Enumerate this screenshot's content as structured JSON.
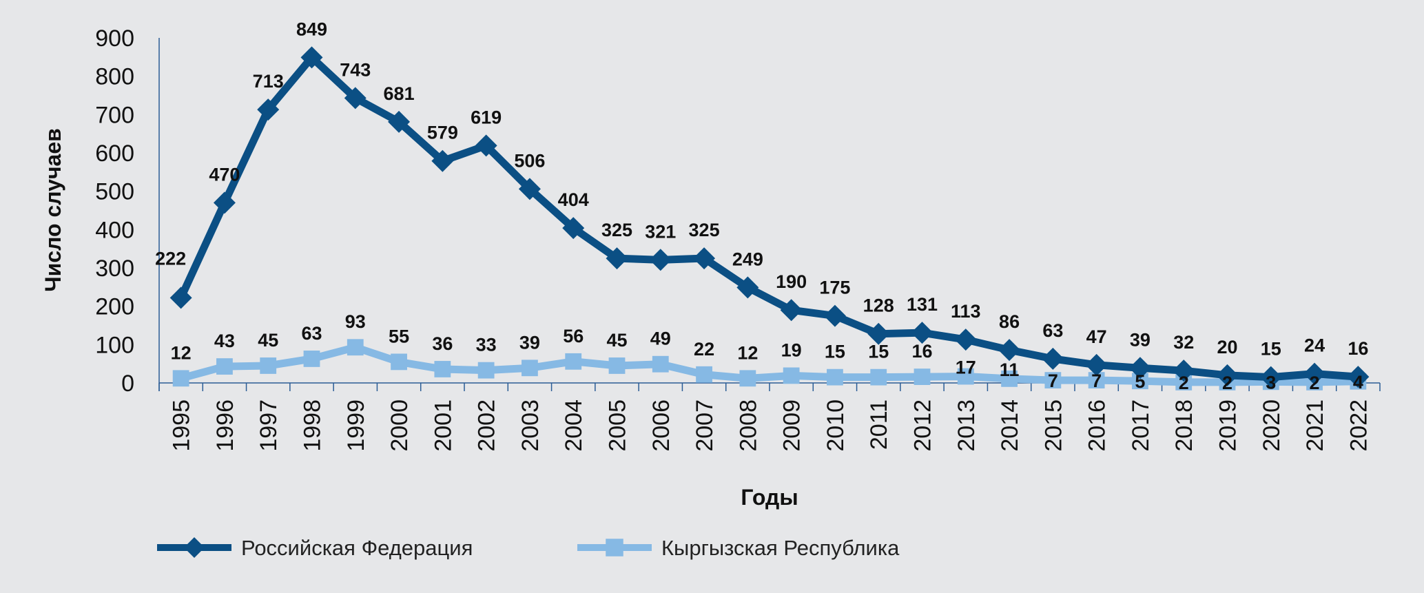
{
  "chart_data": {
    "type": "line",
    "title": "",
    "xlabel": "Годы",
    "ylabel": "Число случаев",
    "ylim": [
      0,
      900
    ],
    "yticks": [
      0,
      100,
      200,
      300,
      400,
      500,
      600,
      700,
      800,
      900
    ],
    "grid": false,
    "legend_position": "bottom",
    "categories": [
      "1995",
      "1996",
      "1997",
      "1998",
      "1999",
      "2000",
      "2001",
      "2002",
      "2003",
      "2004",
      "2005",
      "2006",
      "2007",
      "2008",
      "2009",
      "2010",
      "2011",
      "2012",
      "2013",
      "2014",
      "2015",
      "2016",
      "2017",
      "2018",
      "2019",
      "2020",
      "2021",
      "2022"
    ],
    "series": [
      {
        "name": "Российская Федерация",
        "color": "#0b4f84",
        "marker": "diamond",
        "values": [
          222,
          470,
          713,
          849,
          743,
          681,
          579,
          619,
          506,
          404,
          325,
          321,
          325,
          249,
          190,
          175,
          128,
          131,
          113,
          86,
          63,
          47,
          39,
          32,
          20,
          15,
          24,
          16
        ]
      },
      {
        "name": "Кыргызская Республика",
        "color": "#86b9e4",
        "marker": "square",
        "values": [
          12,
          43,
          45,
          63,
          93,
          55,
          36,
          33,
          39,
          56,
          45,
          49,
          22,
          12,
          19,
          15,
          15,
          16,
          17,
          11,
          7,
          7,
          5,
          2,
          2,
          3,
          2,
          4
        ]
      }
    ]
  }
}
